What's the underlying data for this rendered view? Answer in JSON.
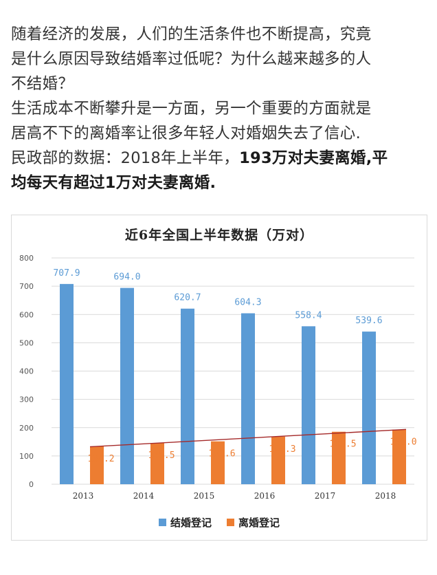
{
  "article": {
    "line1": "随着经济的发展，人们的生活条件也不断提高，究竟",
    "line2": "是什么原因导致结婚率过低呢？为什么越来越多的人",
    "line3": "不结婚？",
    "line4": "生活成本不断攀升是一方面，另一个重要的方面就是",
    "line5": "居高不下的离婚率让很多年轻人对婚姻失去了信心.",
    "line6_normal": "民政部的数据：2018年上半年，",
    "line6_bold": "193万对夫妻离婚,平",
    "line7_bold": "均每天有超过1万对夫妻离婚."
  },
  "colors": {
    "marriage": "#5b9bd5",
    "divorce": "#ed7d31",
    "trend": "#a52a2a",
    "grid": "#d9d9d9",
    "axis_text": "#555555"
  },
  "chart_data": {
    "type": "bar",
    "title": "近6年全国上半年数据（万对）",
    "categories": [
      "2013",
      "2014",
      "2015",
      "2016",
      "2017",
      "2018"
    ],
    "series": [
      {
        "name": "结婚登记",
        "values": [
          707.9,
          694.0,
          620.7,
          604.3,
          558.4,
          539.6
        ],
        "labels": [
          "707.9",
          "694.0",
          "620.7",
          "604.3",
          "558.4",
          "539.6"
        ]
      },
      {
        "name": "离婚登记",
        "values": [
          134.2,
          145.5,
          151.6,
          168.3,
          185.5,
          193.0
        ],
        "labels": [
          "134.2",
          "145.5",
          "151.6",
          "168.3",
          "185.5",
          "193.0"
        ]
      }
    ],
    "trendline": {
      "series": "离婚登记",
      "type": "linear"
    },
    "ylim": [
      0,
      800
    ],
    "yticks": [
      0,
      100,
      200,
      300,
      400,
      500,
      600,
      700,
      800
    ],
    "grid": true,
    "legend": "bottom"
  }
}
